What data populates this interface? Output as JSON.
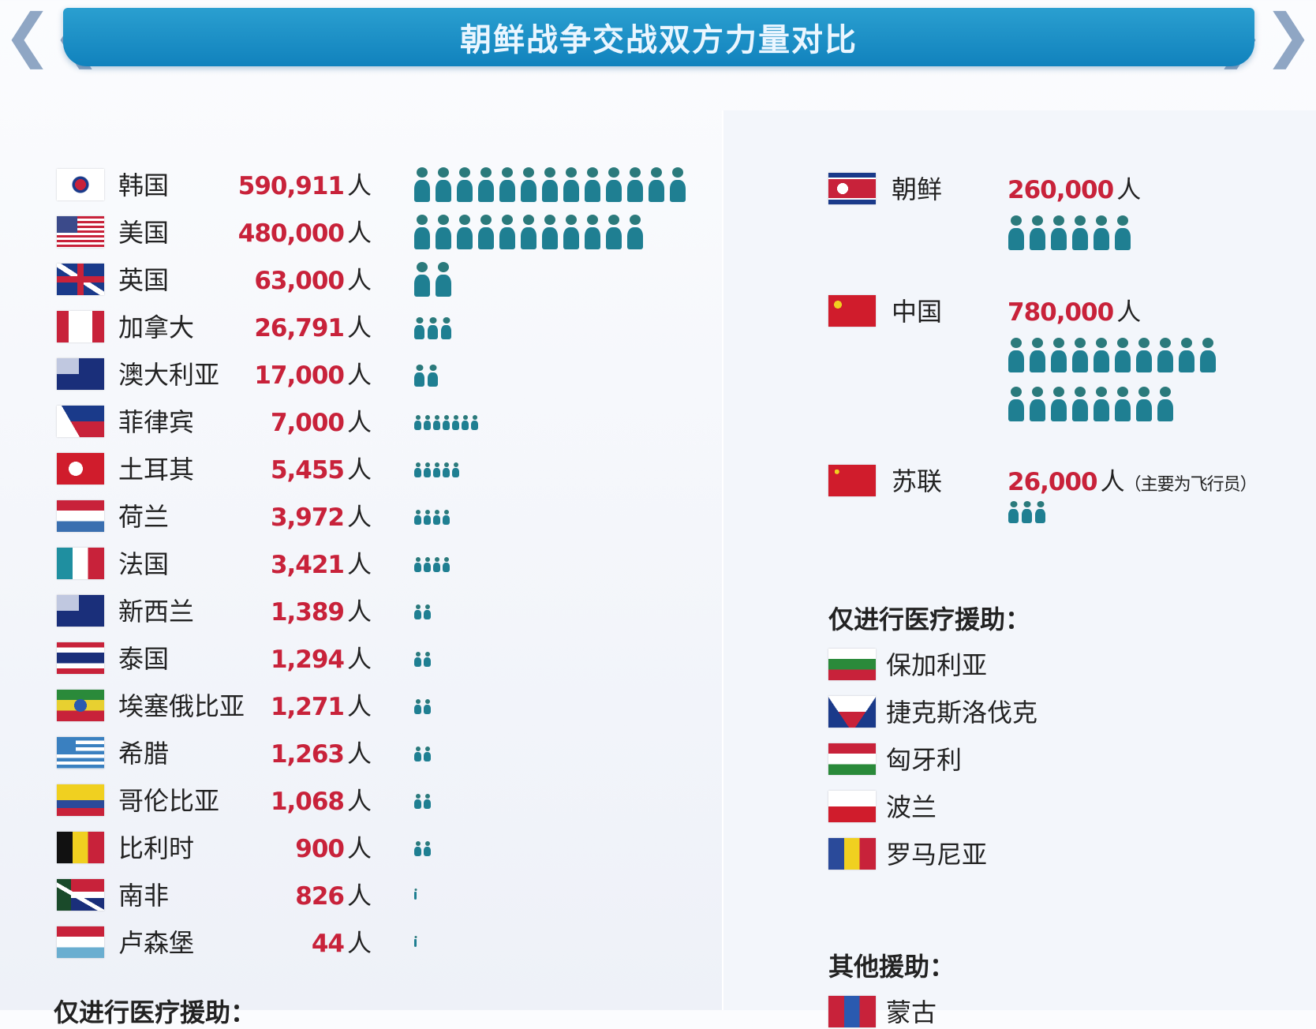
{
  "title": "朝鲜战争交战双方力量对比",
  "unit": "人",
  "left": [
    {
      "name": "韩国",
      "value": "590,911",
      "flag": "f-kr",
      "icons": 13,
      "size": "large"
    },
    {
      "name": "美国",
      "value": "480,000",
      "flag": "f-us",
      "icons": 11,
      "size": "large"
    },
    {
      "name": "英国",
      "value": "63,000",
      "flag": "f-gb",
      "icons": 2,
      "size": "large"
    },
    {
      "name": "加拿大",
      "value": "26,791",
      "flag": "f-ca",
      "icons": 3,
      "size": "medium"
    },
    {
      "name": "澳大利亚",
      "value": "17,000",
      "flag": "f-au",
      "icons": 2,
      "size": "medium"
    },
    {
      "name": "菲律宾",
      "value": "7,000",
      "flag": "f-ph",
      "icons": 7,
      "size": "small"
    },
    {
      "name": "土耳其",
      "value": "5,455",
      "flag": "f-tr",
      "icons": 5,
      "size": "small"
    },
    {
      "name": "荷兰",
      "value": "3,972",
      "flag": "f-nl",
      "icons": 4,
      "size": "small"
    },
    {
      "name": "法国",
      "value": "3,421",
      "flag": "f-fr",
      "icons": 4,
      "size": "small"
    },
    {
      "name": "新西兰",
      "value": "1,389",
      "flag": "f-nz",
      "icons": 2,
      "size": "small"
    },
    {
      "name": "泰国",
      "value": "1,294",
      "flag": "f-th",
      "icons": 2,
      "size": "small"
    },
    {
      "name": "埃塞俄比亚",
      "value": "1,271",
      "flag": "f-et",
      "icons": 2,
      "size": "small"
    },
    {
      "name": "希腊",
      "value": "1,263",
      "flag": "f-gr",
      "icons": 2,
      "size": "small"
    },
    {
      "name": "哥伦比亚",
      "value": "1,068",
      "flag": "f-co",
      "icons": 2,
      "size": "small"
    },
    {
      "name": "比利时",
      "value": "900",
      "flag": "f-be",
      "icons": 2,
      "size": "small"
    },
    {
      "name": "南非",
      "value": "826",
      "flag": "f-za",
      "icons": 1,
      "size": "tiny"
    },
    {
      "name": "卢森堡",
      "value": "44",
      "flag": "f-lu",
      "icons": 1,
      "size": "tiny"
    }
  ],
  "left_medical_heading": "仅进行医疗援助：",
  "right": [
    {
      "name": "朝鲜",
      "value": "260,000",
      "flag": "f-kp",
      "icons": [
        6
      ],
      "size": "large",
      "note": ""
    },
    {
      "name": "中国",
      "value": "780,000",
      "flag": "f-cn",
      "icons": [
        10,
        8
      ],
      "size": "large",
      "note": ""
    },
    {
      "name": "苏联",
      "value": "26,000",
      "flag": "f-su",
      "icons": [
        3
      ],
      "size": "medium",
      "note": "（主要为飞行员）"
    }
  ],
  "medical_heading": "仅进行医疗援助：",
  "medical": [
    {
      "name": "保加利亚",
      "flag": "f-bg"
    },
    {
      "name": "捷克斯洛伐克",
      "flag": "f-cz"
    },
    {
      "name": "匈牙利",
      "flag": "f-hu"
    },
    {
      "name": "波兰",
      "flag": "f-pl"
    },
    {
      "name": "罗马尼亚",
      "flag": "f-ro"
    }
  ],
  "other_heading": "其他援助：",
  "other": [
    {
      "name": "蒙古",
      "flag": "f-mn"
    }
  ],
  "colors": {
    "banner": "#1182bd",
    "number": "#c8223a",
    "icon": "#1f7f92"
  }
}
